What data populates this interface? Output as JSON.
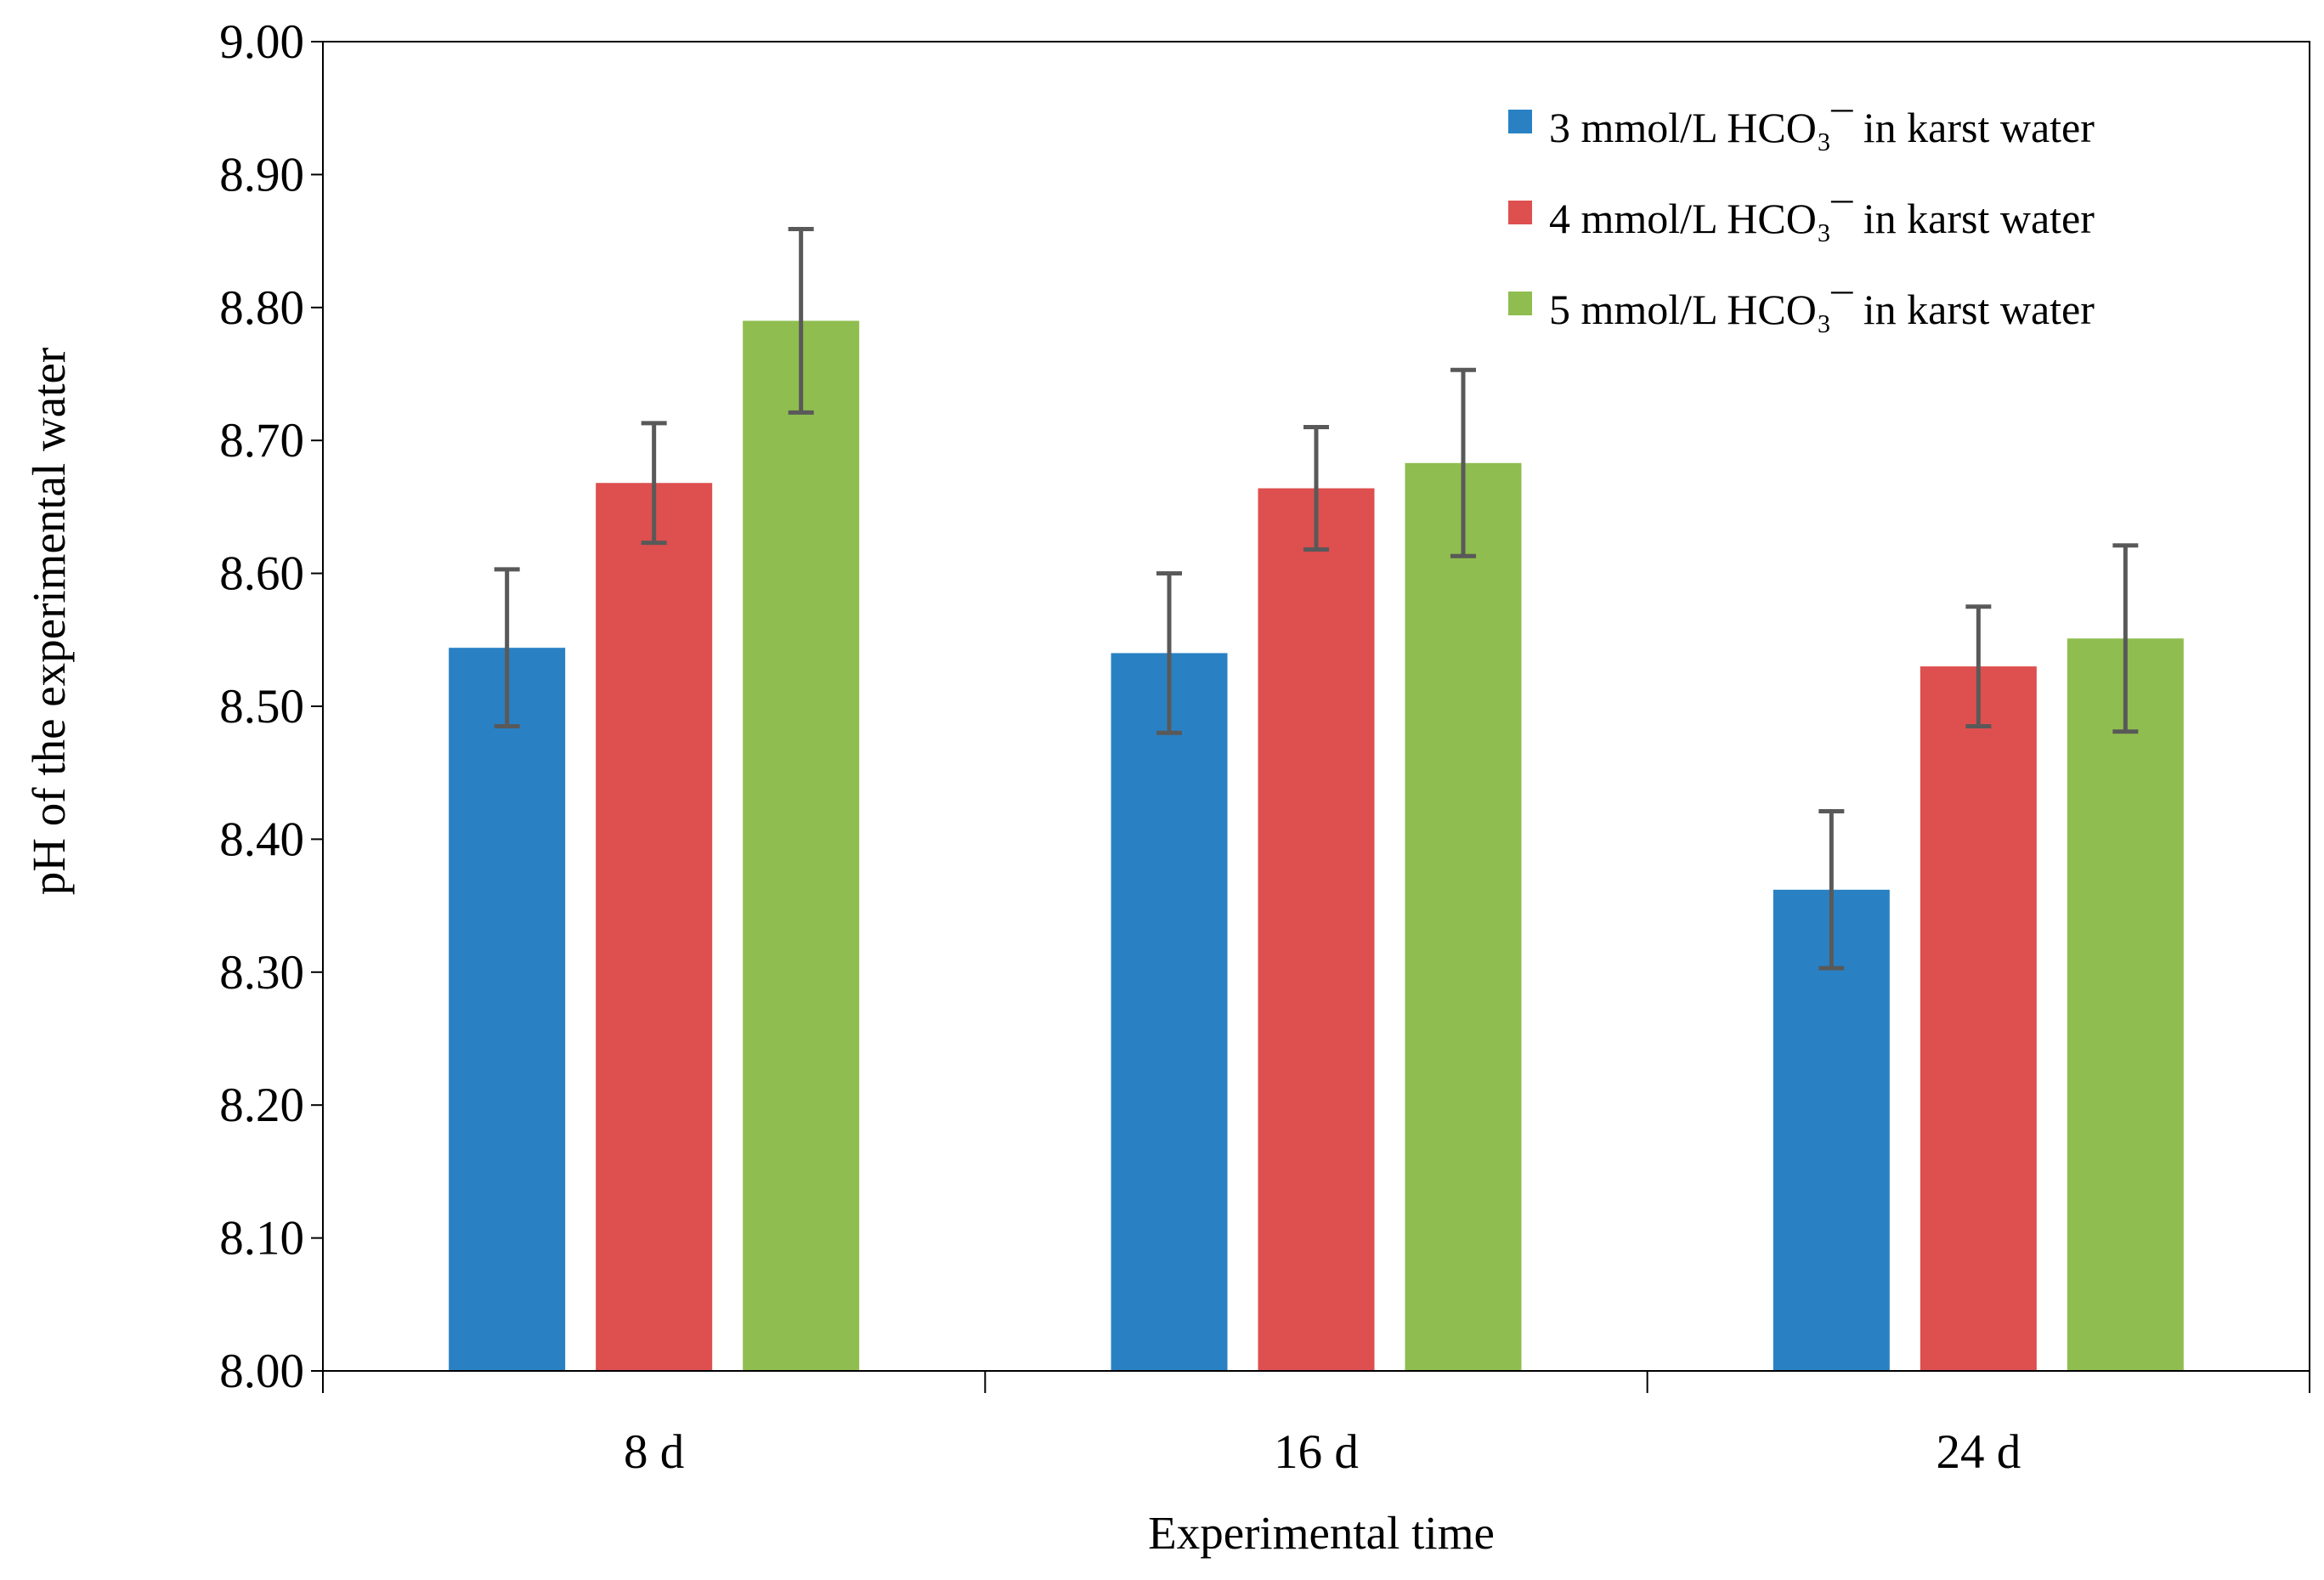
{
  "chart_data": {
    "type": "bar",
    "categories": [
      "8 d",
      "16 d",
      "24 d"
    ],
    "series": [
      {
        "name": "3 mmol/L HCO₃¯ in karst water",
        "color": "#2981C3",
        "values": [
          8.544,
          8.54,
          8.362
        ],
        "errors": [
          0.059,
          0.06,
          0.059
        ]
      },
      {
        "name": "4 mmol/L HCO₃¯ in karst water",
        "color": "#DE4F4F",
        "values": [
          8.668,
          8.664,
          8.53
        ],
        "errors": [
          0.045,
          0.046,
          0.045
        ]
      },
      {
        "name": "5 mmol/L HCO₃¯ in karst water",
        "color": "#8FBD4F",
        "values": [
          8.79,
          8.683,
          8.551
        ],
        "errors": [
          0.069,
          0.07,
          0.07
        ]
      }
    ],
    "xlabel": "Experimental  time",
    "ylabel": "pH of the experimental water",
    "ylim": [
      8.0,
      9.0
    ],
    "yticks": [
      "8.00",
      "8.10",
      "8.20",
      "8.30",
      "8.40",
      "8.50",
      "8.60",
      "8.70",
      "8.80",
      "8.90",
      "9.00"
    ],
    "ytick_values": [
      8.0,
      8.1,
      8.2,
      8.3,
      8.4,
      8.5,
      8.6,
      8.7,
      8.8,
      8.9,
      9.0
    ],
    "grid": false,
    "legend_position": "top-right",
    "error_bar_color": "#595959"
  }
}
